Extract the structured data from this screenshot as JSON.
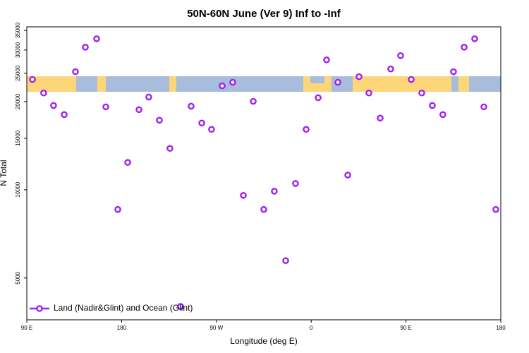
{
  "chart_data": {
    "type": "scatter",
    "title": "50N-60N June (Ver 9)   Inf to -Inf",
    "x_label": "Longitude (deg E)",
    "y_label": "N Total",
    "log_y": true,
    "legend": "bottomleft",
    "xlim": [
      90,
      540
    ],
    "ylim": [
      3600,
      36000
    ],
    "xticks": [
      {
        "value": 90,
        "label": "90 E"
      },
      {
        "value": 180,
        "label": "180"
      },
      {
        "value": 270,
        "label": "90 W"
      },
      {
        "value": 360,
        "label": "0"
      },
      {
        "value": 450,
        "label": "90 E"
      },
      {
        "value": 540,
        "label": "180"
      }
    ],
    "yticks": [
      5000,
      10000,
      15000,
      20000,
      25000,
      30000,
      35000
    ],
    "series": [
      {
        "name": "Land (Nadir&Glint) and Ocean (Glint)",
        "color": "#a020f0",
        "x": [
          95.4,
          106,
          115.4,
          125.5,
          136.2,
          145.6,
          156.3,
          165,
          176.4,
          185.8,
          196.5,
          205.8,
          215.9,
          225.9,
          236,
          246,
          256.1,
          265.4,
          275.5,
          285.5,
          295.6,
          305,
          315,
          325,
          335.8,
          345.1,
          355.2,
          366.6,
          374.6,
          385.3,
          394.7,
          405.4,
          414.8,
          425.5,
          435.5,
          444.9,
          455,
          465,
          475,
          485,
          495.1,
          505.2,
          515.2,
          523.9,
          535.3
        ],
        "values": [
          23800,
          21400,
          19400,
          18060,
          25290,
          30680,
          32780,
          19190,
          8570,
          12400,
          18770,
          20730,
          17280,
          13850,
          4000,
          19290,
          16900,
          16080,
          22640,
          23280,
          9570,
          20050,
          8570,
          9890,
          5730,
          10510,
          16080,
          20620,
          27770,
          23280,
          11230,
          24330,
          21400,
          17570,
          25850,
          28710,
          23800,
          21400,
          19400,
          18060,
          25290,
          30680,
          32780,
          19190,
          8570
        ]
      }
    ]
  }
}
